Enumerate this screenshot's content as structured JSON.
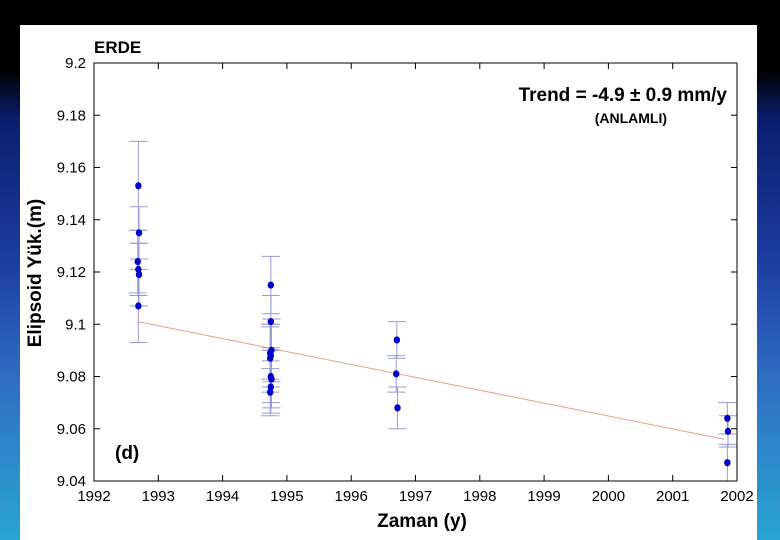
{
  "chart_data": {
    "type": "scatter",
    "title": "ERDE",
    "xlabel": "Zaman (y)",
    "ylabel": "Elipsoid Yük.(m)",
    "xlim": [
      1992,
      2002
    ],
    "ylim": [
      9.04,
      9.2
    ],
    "x_ticks": [
      "1992",
      "1993",
      "1994",
      "1995",
      "1996",
      "1997",
      "1998",
      "1999",
      "2000",
      "2001",
      "2002"
    ],
    "y_ticks": [
      "9.04",
      "9.06",
      "9.08",
      "9.1",
      "9.12",
      "9.14",
      "9.16",
      "9.18",
      "9.2"
    ],
    "grid": false,
    "annotations": {
      "trend": "Trend = -4.9 ± 0.9 mm/y",
      "significance": "(ANLAMLI)",
      "panel": "(d)"
    },
    "colors": {
      "points": "#0000cc",
      "error_bars": "#9a9ad6",
      "trend_line": "#e8a090"
    },
    "trend_line": {
      "x": [
        1992.68,
        2001.8
      ],
      "y": [
        9.101,
        9.056
      ]
    },
    "points": [
      {
        "x": 1992.69,
        "y": 9.153,
        "err": 0.017
      },
      {
        "x": 1992.7,
        "y": 9.135,
        "err": 0.01
      },
      {
        "x": 1992.68,
        "y": 9.124,
        "err": 0.012
      },
      {
        "x": 1992.69,
        "y": 9.121,
        "err": 0.01
      },
      {
        "x": 1992.7,
        "y": 9.119,
        "err": 0.012
      },
      {
        "x": 1992.69,
        "y": 9.107,
        "err": 0.014
      },
      {
        "x": 1994.75,
        "y": 9.115,
        "err": 0.011
      },
      {
        "x": 1994.75,
        "y": 9.101,
        "err": 0.01
      },
      {
        "x": 1994.76,
        "y": 9.09,
        "err": 0.012
      },
      {
        "x": 1994.74,
        "y": 9.089,
        "err": 0.01
      },
      {
        "x": 1994.75,
        "y": 9.088,
        "err": 0.012
      },
      {
        "x": 1994.74,
        "y": 9.087,
        "err": 0.013
      },
      {
        "x": 1994.75,
        "y": 9.08,
        "err": 0.01
      },
      {
        "x": 1994.76,
        "y": 9.079,
        "err": 0.011
      },
      {
        "x": 1994.75,
        "y": 9.076,
        "err": 0.01
      },
      {
        "x": 1994.74,
        "y": 9.074,
        "err": 0.009
      },
      {
        "x": 1996.71,
        "y": 9.094,
        "err": 0.007
      },
      {
        "x": 1996.7,
        "y": 9.081,
        "err": 0.007
      },
      {
        "x": 1996.72,
        "y": 9.068,
        "err": 0.008
      },
      {
        "x": 2001.85,
        "y": 9.064,
        "err": 0.006
      },
      {
        "x": 2001.86,
        "y": 9.059,
        "err": 0.006
      },
      {
        "x": 2001.85,
        "y": 9.047,
        "err": 0.007
      }
    ]
  }
}
